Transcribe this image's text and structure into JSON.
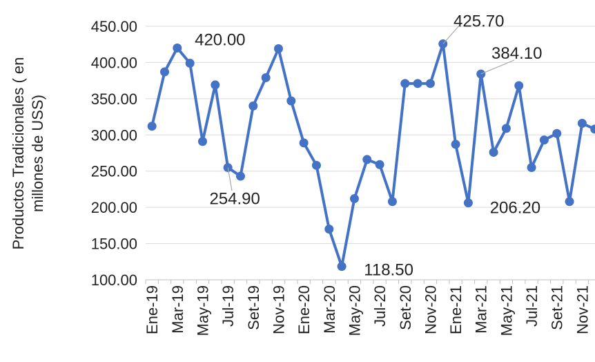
{
  "chart_data": {
    "type": "line",
    "y_label": [
      "Productos Tradicionales ( en",
      "millones de USS)"
    ],
    "categories": [
      "Ene-19",
      null,
      "Mar-19",
      null,
      "May-19",
      null,
      "Jul-19",
      null,
      "Set-19",
      null,
      "Nov-19",
      null,
      "Ene-20",
      null,
      "Mar-20",
      null,
      "May-20",
      null,
      "Jul-20",
      null,
      "Set-20",
      null,
      "Nov-20",
      null,
      "Ene-21",
      null,
      "Mar-21",
      null,
      "May-21",
      null,
      "Jul-21",
      null,
      "Set-21",
      null,
      "Nov-21",
      null
    ],
    "series": [
      {
        "name": "Productos Tradicionales",
        "color": "#4472c4",
        "values": [
          312,
          387,
          420,
          399,
          291,
          369,
          254.9,
          243,
          340,
          379,
          419,
          347,
          289,
          258,
          170,
          118.5,
          212,
          266,
          259,
          208,
          371,
          371,
          371,
          425.7,
          287,
          206.2,
          384.1,
          276,
          309,
          368,
          255,
          293,
          302,
          208,
          316,
          308
        ],
        "value_labels": [
          null,
          null,
          "420.00",
          null,
          null,
          null,
          "254.90",
          null,
          null,
          null,
          null,
          null,
          null,
          null,
          null,
          "118.50",
          null,
          null,
          null,
          null,
          null,
          null,
          null,
          "425.70",
          null,
          "206.20",
          "384.10",
          null,
          null,
          null,
          null,
          null,
          null,
          null,
          null,
          null
        ]
      }
    ],
    "ylim": [
      100,
      450
    ],
    "yticks": [
      {
        "value": 100,
        "label": "100.00"
      },
      {
        "value": 150,
        "label": "150.00"
      },
      {
        "value": 200,
        "label": "200.00"
      },
      {
        "value": 250,
        "label": "250.00"
      },
      {
        "value": 300,
        "label": "300.00"
      },
      {
        "value": 350,
        "label": "350.00"
      },
      {
        "value": 400,
        "label": "400.00"
      },
      {
        "value": 450,
        "label": "450.00"
      }
    ],
    "grid": true
  }
}
